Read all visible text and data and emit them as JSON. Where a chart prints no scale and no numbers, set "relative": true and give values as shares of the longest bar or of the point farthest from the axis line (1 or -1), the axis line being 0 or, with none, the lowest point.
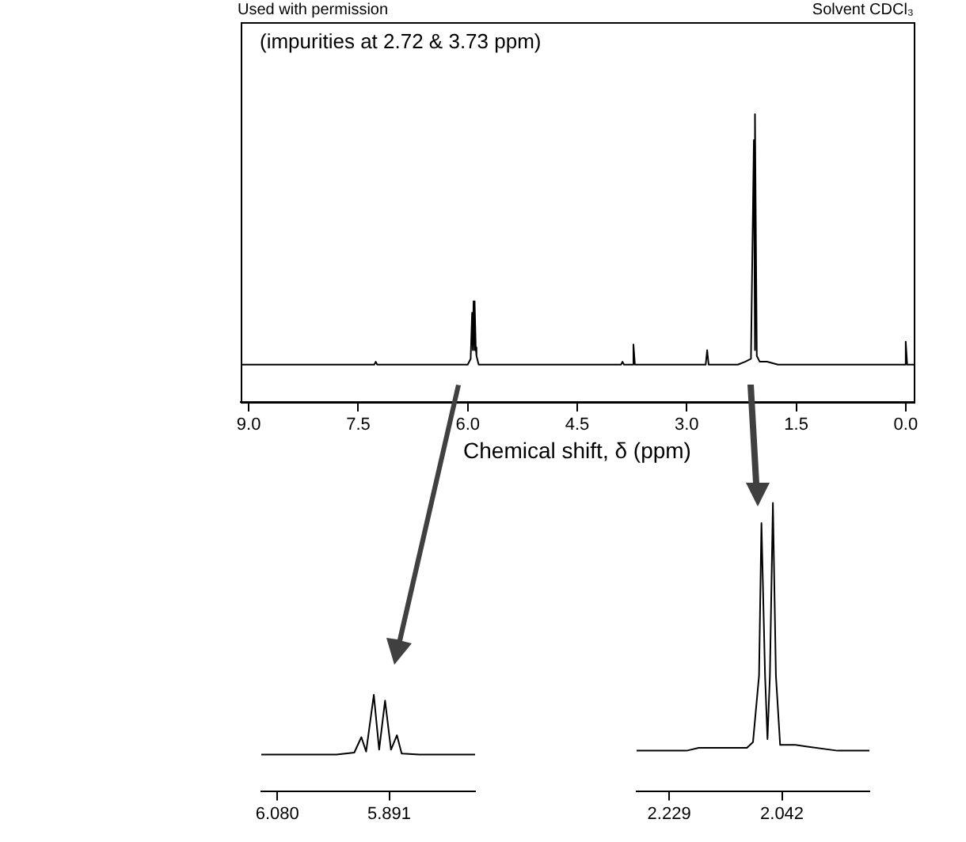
{
  "chart_data": [
    {
      "type": "line",
      "relative": true,
      "xlabel": "Chemical shift, δ (ppm)",
      "annotations": [
        "Used with permission",
        "Solvent CDCl₃",
        "(impurities at 2.72 & 3.73 ppm)"
      ],
      "xlim": [
        9.11,
        -0.11
      ],
      "xticks": [
        {
          "value": 9,
          "label": "9.0"
        },
        {
          "value": 7.5,
          "label": "7.5"
        },
        {
          "value": 6,
          "label": "6.0"
        },
        {
          "value": 4.5,
          "label": "4.5"
        },
        {
          "value": 3,
          "label": "3.0"
        },
        {
          "value": 1.5,
          "label": "1.5"
        },
        {
          "value": 0,
          "label": "0.0"
        }
      ],
      "tick_labels": "x",
      "grid": false,
      "legend": false,
      "marker": "none",
      "line_style": "solid",
      "series": [
        {
          "color": "#000000",
          "x": [
            9.11,
            7.28,
            7.26,
            7.24,
            6.0,
            5.96,
            5.94,
            5.93,
            5.92,
            5.91,
            5.9,
            5.89,
            5.88,
            5.85,
            3.9,
            3.88,
            3.86,
            3.75,
            3.73,
            3.71,
            2.74,
            2.72,
            2.7,
            2.3,
            2.2,
            2.12,
            2.08,
            2.07,
            2.06,
            2.04,
            2.0,
            1.9,
            1.75,
            0.02,
            0.0,
            -0.02,
            -0.11
          ],
          "values": [
            0.13,
            0.13,
            0.14,
            0.13,
            0.13,
            0.15,
            0.31,
            0.18,
            0.35,
            0.18,
            0.34,
            0.19,
            0.16,
            0.13,
            0.13,
            0.14,
            0.13,
            0.13,
            0.2,
            0.13,
            0.13,
            0.18,
            0.13,
            0.13,
            0.14,
            0.15,
            0.91,
            0.18,
            1,
            0.16,
            0.14,
            0.14,
            0.13,
            0.13,
            0.21,
            0.13,
            0.13
          ]
        }
      ]
    },
    {
      "type": "line",
      "relative": true,
      "xlim": [
        6.107,
        5.746
      ],
      "xticks": [
        {
          "value": 6.08,
          "label": "6.080"
        },
        {
          "value": 5.891,
          "label": "5.891"
        }
      ],
      "tick_labels": "x",
      "grid": false,
      "legend": false,
      "marker": "none",
      "line_style": "solid",
      "series": [
        {
          "color": "#000000",
          "x": [
            6.107,
            5.98,
            5.95,
            5.938,
            5.93,
            5.917,
            5.908,
            5.898,
            5.888,
            5.878,
            5.87,
            5.84,
            5.746
          ],
          "values": [
            0.38,
            0.38,
            0.4,
            0.56,
            0.41,
            1,
            0.43,
            0.94,
            0.43,
            0.58,
            0.39,
            0.38,
            0.38
          ]
        }
      ]
    },
    {
      "type": "line",
      "relative": true,
      "xlim": [
        2.283,
        1.897
      ],
      "xticks": [
        {
          "value": 2.229,
          "label": "2.229"
        },
        {
          "value": 2.042,
          "label": "2.042"
        }
      ],
      "tick_labels": "x",
      "grid": false,
      "legend": false,
      "marker": "none",
      "line_style": "solid",
      "series": [
        {
          "color": "#000000",
          "x": [
            2.283,
            2.2,
            2.18,
            2.1,
            2.09,
            2.08,
            2.076,
            2.07,
            2.066,
            2.062,
            2.057,
            2.052,
            2.045,
            2.02,
            1.95,
            1.897
          ],
          "values": [
            0.14,
            0.14,
            0.15,
            0.15,
            0.17,
            0.4,
            0.93,
            0.4,
            0.18,
            0.4,
            1,
            0.4,
            0.16,
            0.16,
            0.14,
            0.14
          ]
        }
      ]
    }
  ]
}
